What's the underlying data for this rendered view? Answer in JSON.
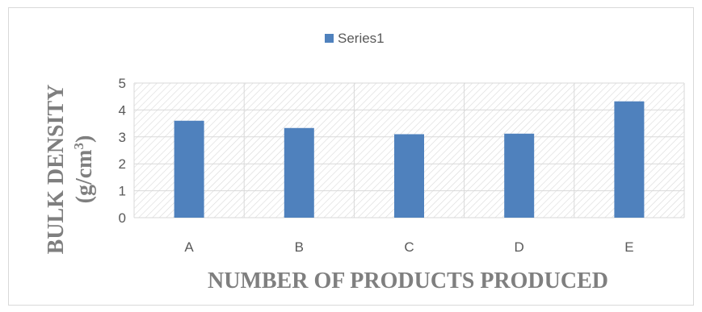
{
  "chart_data": {
    "type": "bar",
    "categories": [
      "A",
      "B",
      "C",
      "D",
      "E"
    ],
    "series": [
      {
        "name": "Series1",
        "values": [
          3.6,
          3.33,
          3.1,
          3.12,
          4.32
        ]
      }
    ],
    "xlabel": "NUMBER OF PRODUCTS PRODUCED",
    "ylabel_line1": "BULK DENSITY",
    "ylabel_line2": "(g/cm",
    "ylabel_sup": "3",
    "ylabel_close": ")",
    "ylim": [
      0,
      5
    ],
    "yticks": [
      "0",
      "1",
      "2",
      "3",
      "4",
      "5"
    ],
    "grid": true,
    "plot_area_pattern": "diagonal-hatch",
    "legend_position": "top-center",
    "colors": {
      "bar": "#4f81bd",
      "grid": "#d9d9d9",
      "hatch": "#d9d9d9",
      "text": "#595959",
      "axis_title": "#7f7f7f"
    }
  }
}
